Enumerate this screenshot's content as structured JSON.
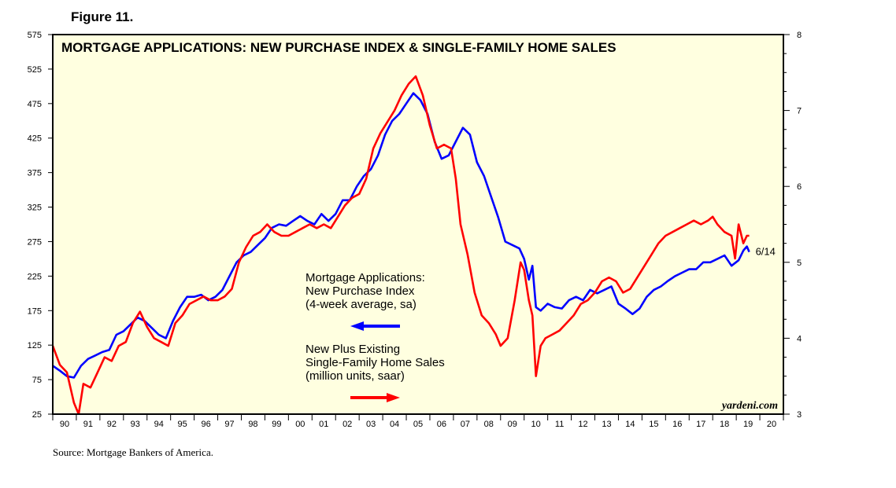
{
  "figure_label": "Figure 11.",
  "source": "Source: Mortgage Bankers of America.",
  "chart_data": {
    "type": "line",
    "title": "MORTGAGE APPLICATIONS: NEW PURCHASE INDEX & SINGLE-FAMILY HOME SALES",
    "credit": "yardeni.com",
    "end_label": "6/14",
    "background": "#ffffe0",
    "y_left": {
      "min": 25,
      "max": 575,
      "ticks": [
        25,
        75,
        125,
        175,
        225,
        275,
        325,
        375,
        425,
        475,
        525,
        575
      ]
    },
    "y_right": {
      "min": 3,
      "max": 8,
      "ticks": [
        3,
        4,
        5,
        6,
        7,
        8
      ]
    },
    "x": {
      "min": 1990,
      "max": 2021,
      "tick_labels": [
        "90",
        "91",
        "92",
        "93",
        "94",
        "95",
        "96",
        "97",
        "98",
        "99",
        "00",
        "01",
        "02",
        "03",
        "04",
        "05",
        "06",
        "07",
        "08",
        "09",
        "10",
        "11",
        "12",
        "13",
        "14",
        "15",
        "16",
        "17",
        "18",
        "19",
        "20"
      ]
    },
    "annotations": [
      {
        "lines": [
          "Mortgage Applications:",
          "New Purchase Index",
          "(4-week average, sa)"
        ],
        "arrow": "left",
        "color": "#0000ff"
      },
      {
        "lines": [
          "New Plus Existing",
          "Single-Family Home Sales",
          "(million units, saar)"
        ],
        "arrow": "right",
        "color": "#ff0000"
      }
    ],
    "series": [
      {
        "name": "Mortgage Applications: New Purchase Index",
        "axis": "left",
        "color": "#0000ff",
        "points": [
          [
            1990.0,
            95
          ],
          [
            1990.3,
            88
          ],
          [
            1990.6,
            80
          ],
          [
            1990.9,
            78
          ],
          [
            1991.2,
            95
          ],
          [
            1991.5,
            105
          ],
          [
            1991.8,
            110
          ],
          [
            1992.1,
            115
          ],
          [
            1992.4,
            118
          ],
          [
            1992.7,
            140
          ],
          [
            1993.0,
            145
          ],
          [
            1993.3,
            155
          ],
          [
            1993.6,
            165
          ],
          [
            1993.9,
            160
          ],
          [
            1994.2,
            150
          ],
          [
            1994.5,
            140
          ],
          [
            1994.8,
            135
          ],
          [
            1995.1,
            160
          ],
          [
            1995.4,
            180
          ],
          [
            1995.7,
            195
          ],
          [
            1996.0,
            195
          ],
          [
            1996.3,
            198
          ],
          [
            1996.6,
            190
          ],
          [
            1996.9,
            195
          ],
          [
            1997.2,
            205
          ],
          [
            1997.5,
            225
          ],
          [
            1997.8,
            245
          ],
          [
            1998.1,
            255
          ],
          [
            1998.4,
            260
          ],
          [
            1998.7,
            270
          ],
          [
            1999.0,
            280
          ],
          [
            1999.3,
            295
          ],
          [
            1999.6,
            300
          ],
          [
            1999.9,
            298
          ],
          [
            2000.2,
            305
          ],
          [
            2000.5,
            312
          ],
          [
            2000.8,
            305
          ],
          [
            2001.1,
            300
          ],
          [
            2001.4,
            315
          ],
          [
            2001.7,
            305
          ],
          [
            2002.0,
            315
          ],
          [
            2002.3,
            335
          ],
          [
            2002.6,
            335
          ],
          [
            2002.9,
            355
          ],
          [
            2003.2,
            370
          ],
          [
            2003.5,
            380
          ],
          [
            2003.8,
            400
          ],
          [
            2004.1,
            430
          ],
          [
            2004.4,
            450
          ],
          [
            2004.7,
            460
          ],
          [
            2005.0,
            475
          ],
          [
            2005.3,
            490
          ],
          [
            2005.6,
            480
          ],
          [
            2005.9,
            460
          ],
          [
            2006.2,
            420
          ],
          [
            2006.5,
            395
          ],
          [
            2006.8,
            400
          ],
          [
            2007.1,
            420
          ],
          [
            2007.4,
            440
          ],
          [
            2007.7,
            430
          ],
          [
            2008.0,
            390
          ],
          [
            2008.3,
            370
          ],
          [
            2008.6,
            340
          ],
          [
            2008.9,
            310
          ],
          [
            2009.2,
            275
          ],
          [
            2009.5,
            270
          ],
          [
            2009.8,
            265
          ],
          [
            2010.0,
            250
          ],
          [
            2010.2,
            220
          ],
          [
            2010.35,
            240
          ],
          [
            2010.5,
            180
          ],
          [
            2010.7,
            175
          ],
          [
            2011.0,
            185
          ],
          [
            2011.3,
            180
          ],
          [
            2011.6,
            178
          ],
          [
            2011.9,
            190
          ],
          [
            2012.2,
            195
          ],
          [
            2012.5,
            190
          ],
          [
            2012.8,
            205
          ],
          [
            2013.1,
            200
          ],
          [
            2013.4,
            205
          ],
          [
            2013.7,
            210
          ],
          [
            2014.0,
            185
          ],
          [
            2014.3,
            178
          ],
          [
            2014.6,
            170
          ],
          [
            2014.9,
            178
          ],
          [
            2015.2,
            195
          ],
          [
            2015.5,
            205
          ],
          [
            2015.8,
            210
          ],
          [
            2016.1,
            218
          ],
          [
            2016.4,
            225
          ],
          [
            2016.7,
            230
          ],
          [
            2017.0,
            235
          ],
          [
            2017.3,
            235
          ],
          [
            2017.6,
            245
          ],
          [
            2017.9,
            245
          ],
          [
            2018.2,
            250
          ],
          [
            2018.5,
            255
          ],
          [
            2018.8,
            240
          ],
          [
            2019.1,
            248
          ],
          [
            2019.3,
            262
          ],
          [
            2019.45,
            268
          ],
          [
            2019.55,
            260
          ]
        ]
      },
      {
        "name": "New Plus Existing Single-Family Home Sales",
        "axis": "right",
        "color": "#ff0000",
        "points": [
          [
            1990.0,
            3.9
          ],
          [
            1990.3,
            3.65
          ],
          [
            1990.6,
            3.55
          ],
          [
            1990.9,
            3.15
          ],
          [
            1991.1,
            3.0
          ],
          [
            1991.3,
            3.4
          ],
          [
            1991.6,
            3.35
          ],
          [
            1991.9,
            3.55
          ],
          [
            1992.2,
            3.75
          ],
          [
            1992.5,
            3.7
          ],
          [
            1992.8,
            3.9
          ],
          [
            1993.1,
            3.95
          ],
          [
            1993.4,
            4.2
          ],
          [
            1993.7,
            4.35
          ],
          [
            1994.0,
            4.15
          ],
          [
            1994.3,
            4.0
          ],
          [
            1994.6,
            3.95
          ],
          [
            1994.9,
            3.9
          ],
          [
            1995.2,
            4.2
          ],
          [
            1995.5,
            4.3
          ],
          [
            1995.8,
            4.45
          ],
          [
            1996.1,
            4.5
          ],
          [
            1996.4,
            4.55
          ],
          [
            1996.7,
            4.5
          ],
          [
            1997.0,
            4.5
          ],
          [
            1997.3,
            4.55
          ],
          [
            1997.6,
            4.65
          ],
          [
            1997.9,
            5.0
          ],
          [
            1998.2,
            5.2
          ],
          [
            1998.5,
            5.35
          ],
          [
            1998.8,
            5.4
          ],
          [
            1999.1,
            5.5
          ],
          [
            1999.4,
            5.4
          ],
          [
            1999.7,
            5.35
          ],
          [
            2000.0,
            5.35
          ],
          [
            2000.3,
            5.4
          ],
          [
            2000.6,
            5.45
          ],
          [
            2000.9,
            5.5
          ],
          [
            2001.2,
            5.45
          ],
          [
            2001.5,
            5.5
          ],
          [
            2001.8,
            5.45
          ],
          [
            2002.1,
            5.6
          ],
          [
            2002.4,
            5.75
          ],
          [
            2002.7,
            5.85
          ],
          [
            2003.0,
            5.9
          ],
          [
            2003.3,
            6.1
          ],
          [
            2003.6,
            6.5
          ],
          [
            2003.9,
            6.7
          ],
          [
            2004.2,
            6.85
          ],
          [
            2004.5,
            7.0
          ],
          [
            2004.8,
            7.2
          ],
          [
            2005.1,
            7.35
          ],
          [
            2005.4,
            7.45
          ],
          [
            2005.7,
            7.2
          ],
          [
            2006.0,
            6.8
          ],
          [
            2006.3,
            6.5
          ],
          [
            2006.6,
            6.55
          ],
          [
            2006.9,
            6.5
          ],
          [
            2007.1,
            6.1
          ],
          [
            2007.3,
            5.5
          ],
          [
            2007.6,
            5.1
          ],
          [
            2007.9,
            4.6
          ],
          [
            2008.2,
            4.3
          ],
          [
            2008.5,
            4.2
          ],
          [
            2008.8,
            4.05
          ],
          [
            2009.0,
            3.9
          ],
          [
            2009.3,
            4.0
          ],
          [
            2009.6,
            4.5
          ],
          [
            2009.85,
            5.0
          ],
          [
            2010.0,
            4.9
          ],
          [
            2010.2,
            4.5
          ],
          [
            2010.35,
            4.3
          ],
          [
            2010.5,
            3.5
          ],
          [
            2010.7,
            3.9
          ],
          [
            2010.9,
            4.0
          ],
          [
            2011.2,
            4.05
          ],
          [
            2011.5,
            4.1
          ],
          [
            2011.8,
            4.2
          ],
          [
            2012.1,
            4.3
          ],
          [
            2012.4,
            4.45
          ],
          [
            2012.7,
            4.5
          ],
          [
            2013.0,
            4.6
          ],
          [
            2013.3,
            4.75
          ],
          [
            2013.6,
            4.8
          ],
          [
            2013.9,
            4.75
          ],
          [
            2014.2,
            4.6
          ],
          [
            2014.5,
            4.65
          ],
          [
            2014.8,
            4.8
          ],
          [
            2015.1,
            4.95
          ],
          [
            2015.4,
            5.1
          ],
          [
            2015.7,
            5.25
          ],
          [
            2016.0,
            5.35
          ],
          [
            2016.3,
            5.4
          ],
          [
            2016.6,
            5.45
          ],
          [
            2016.9,
            5.5
          ],
          [
            2017.2,
            5.55
          ],
          [
            2017.5,
            5.5
          ],
          [
            2017.8,
            5.55
          ],
          [
            2018.0,
            5.6
          ],
          [
            2018.2,
            5.5
          ],
          [
            2018.5,
            5.4
          ],
          [
            2018.8,
            5.35
          ],
          [
            2018.95,
            5.05
          ],
          [
            2019.1,
            5.5
          ],
          [
            2019.3,
            5.25
          ],
          [
            2019.45,
            5.35
          ],
          [
            2019.55,
            5.35
          ]
        ]
      }
    ]
  }
}
